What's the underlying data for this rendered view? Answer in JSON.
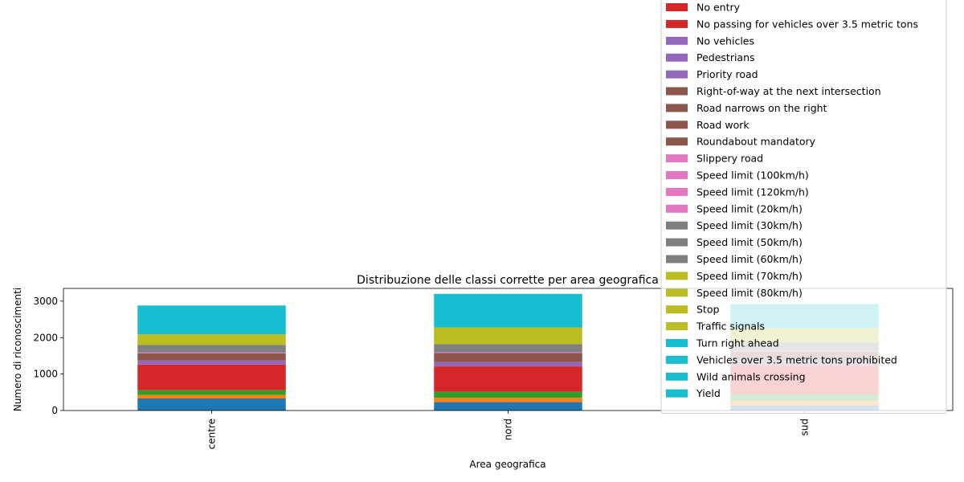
{
  "chart_data": {
    "type": "bar",
    "stacked": true,
    "title": "Distribuzione delle classi corrette per area geografica",
    "xlabel": "Area geografica",
    "ylabel": "Numero di riconoscimenti",
    "categories": [
      "centre",
      "nord",
      "sud"
    ],
    "ylim": [
      0,
      3350
    ],
    "yticks": [
      0,
      1000,
      2000,
      3000
    ],
    "grid": false,
    "legend_position": "top-right",
    "legend_entries": [
      {
        "name": "No entry",
        "color": "#d62728"
      },
      {
        "name": "No passing for vehicles over 3.5 metric tons",
        "color": "#d62728"
      },
      {
        "name": "No vehicles",
        "color": "#9467bd"
      },
      {
        "name": "Pedestrians",
        "color": "#9467bd"
      },
      {
        "name": "Priority road",
        "color": "#9467bd"
      },
      {
        "name": "Right-of-way at the next intersection",
        "color": "#8c564b"
      },
      {
        "name": "Road narrows on the right",
        "color": "#8c564b"
      },
      {
        "name": "Road work",
        "color": "#8c564b"
      },
      {
        "name": "Roundabout mandatory",
        "color": "#8c564b"
      },
      {
        "name": "Slippery road",
        "color": "#e377c2"
      },
      {
        "name": "Speed limit (100km/h)",
        "color": "#e377c2"
      },
      {
        "name": "Speed limit (120km/h)",
        "color": "#e377c2"
      },
      {
        "name": "Speed limit (20km/h)",
        "color": "#e377c2"
      },
      {
        "name": "Speed limit (30km/h)",
        "color": "#7f7f7f"
      },
      {
        "name": "Speed limit (50km/h)",
        "color": "#7f7f7f"
      },
      {
        "name": "Speed limit (60km/h)",
        "color": "#7f7f7f"
      },
      {
        "name": "Speed limit (70km/h)",
        "color": "#bcbd22"
      },
      {
        "name": "Speed limit (80km/h)",
        "color": "#bcbd22"
      },
      {
        "name": "Stop",
        "color": "#bcbd22"
      },
      {
        "name": "Traffic signals",
        "color": "#bcbd22"
      },
      {
        "name": "Turn right ahead",
        "color": "#17becf"
      },
      {
        "name": "Vehicles over 3.5 metric tons prohibited",
        "color": "#17becf"
      },
      {
        "name": "Wild animals crossing",
        "color": "#17becf"
      },
      {
        "name": "Yield",
        "color": "#17becf"
      }
    ],
    "segments": [
      {
        "color": "#1f77b4",
        "values": [
          330,
          230,
          140
        ]
      },
      {
        "color": "#ff7f0e",
        "values": [
          100,
          120,
          130
        ]
      },
      {
        "color": "#2ca02c",
        "values": [
          130,
          160,
          180
        ]
      },
      {
        "color": "#d62728",
        "values": [
          700,
          700,
          780
        ]
      },
      {
        "color": "#9467bd",
        "values": [
          110,
          120,
          130
        ]
      },
      {
        "color": "#8c564b",
        "values": [
          200,
          250,
          250
        ]
      },
      {
        "color": "#e377c2",
        "values": [
          20,
          20,
          20
        ]
      },
      {
        "color": "#7f7f7f",
        "values": [
          210,
          220,
          250
        ]
      },
      {
        "color": "#bcbd22",
        "values": [
          290,
          460,
          380
        ]
      },
      {
        "color": "#17becf",
        "values": [
          790,
          920,
          660
        ]
      }
    ]
  }
}
